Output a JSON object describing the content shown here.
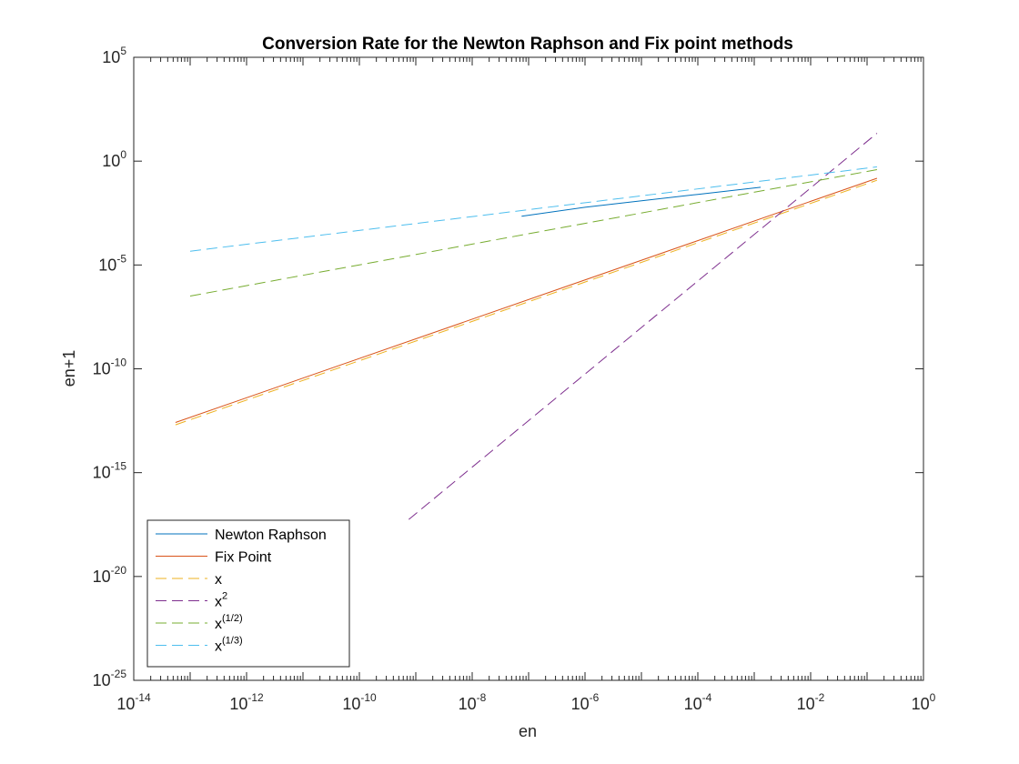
{
  "chart_data": {
    "type": "line",
    "title": "Conversion Rate for the Newton Raphson and Fix point methods",
    "xlabel": "en",
    "ylabel": "en+1",
    "xscale": "log",
    "yscale": "log",
    "xlim": [
      1e-14,
      1
    ],
    "ylim": [
      1e-25,
      100000.0
    ],
    "grid": false,
    "legend_placement": "bottom-left",
    "x_ticks": [
      {
        "value": 1e-14,
        "base": "10",
        "exp": "-14"
      },
      {
        "value": 1e-12,
        "base": "10",
        "exp": "-12"
      },
      {
        "value": 1e-10,
        "base": "10",
        "exp": "-10"
      },
      {
        "value": 1e-08,
        "base": "10",
        "exp": "-8"
      },
      {
        "value": 1e-06,
        "base": "10",
        "exp": "-6"
      },
      {
        "value": 0.0001,
        "base": "10",
        "exp": "-4"
      },
      {
        "value": 0.01,
        "base": "10",
        "exp": "-2"
      },
      {
        "value": 1,
        "base": "10",
        "exp": "0"
      }
    ],
    "y_ticks": [
      {
        "value": 1e-25,
        "base": "10",
        "exp": "-25"
      },
      {
        "value": 1e-20,
        "base": "10",
        "exp": "-20"
      },
      {
        "value": 1e-15,
        "base": "10",
        "exp": "-15"
      },
      {
        "value": 1e-10,
        "base": "10",
        "exp": "-10"
      },
      {
        "value": 1e-05,
        "base": "10",
        "exp": "-5"
      },
      {
        "value": 1,
        "base": "10",
        "exp": "0"
      },
      {
        "value": 100000.0,
        "base": "10",
        "exp": "5"
      }
    ],
    "series": [
      {
        "name": "Newton Raphson",
        "label_base": "Newton Raphson",
        "label_sup": "",
        "color": "#0072BD",
        "dash": "solid",
        "x": [
          7.5e-08,
          1e-06,
          0.0001,
          0.0013
        ],
        "y": [
          0.0022,
          0.006,
          0.025,
          0.055
        ]
      },
      {
        "name": "Fix Point",
        "label_base": "Fix Point",
        "label_sup": "",
        "color": "#D95319",
        "dash": "solid",
        "x": [
          5.5e-14,
          0.15
        ],
        "y": [
          2.6e-13,
          0.15
        ]
      },
      {
        "name": "x",
        "label_base": "x",
        "label_sup": "",
        "color": "#EDB120",
        "dash": "dashed",
        "x": [
          5.5e-14,
          0.15
        ],
        "y": [
          2e-13,
          0.12
        ]
      },
      {
        "name": "x^2",
        "label_base": "x",
        "label_sup": "2",
        "color": "#7E2F8E",
        "dash": "dashed",
        "x": [
          7.5e-10,
          0.15
        ],
        "y": [
          5.6e-18,
          22.0
        ]
      },
      {
        "name": "x^(1/2)",
        "label_base": "x",
        "label_sup": "(1/2)",
        "color": "#77AC30",
        "dash": "dashed",
        "x": [
          1e-13,
          0.15
        ],
        "y": [
          3.2e-07,
          0.39
        ]
      },
      {
        "name": "x^(1/3)",
        "label_base": "x",
        "label_sup": "(1/3)",
        "color": "#4DBEEE",
        "dash": "dashed",
        "x": [
          1e-13,
          0.15
        ],
        "y": [
          4.6e-05,
          0.53
        ]
      }
    ]
  }
}
